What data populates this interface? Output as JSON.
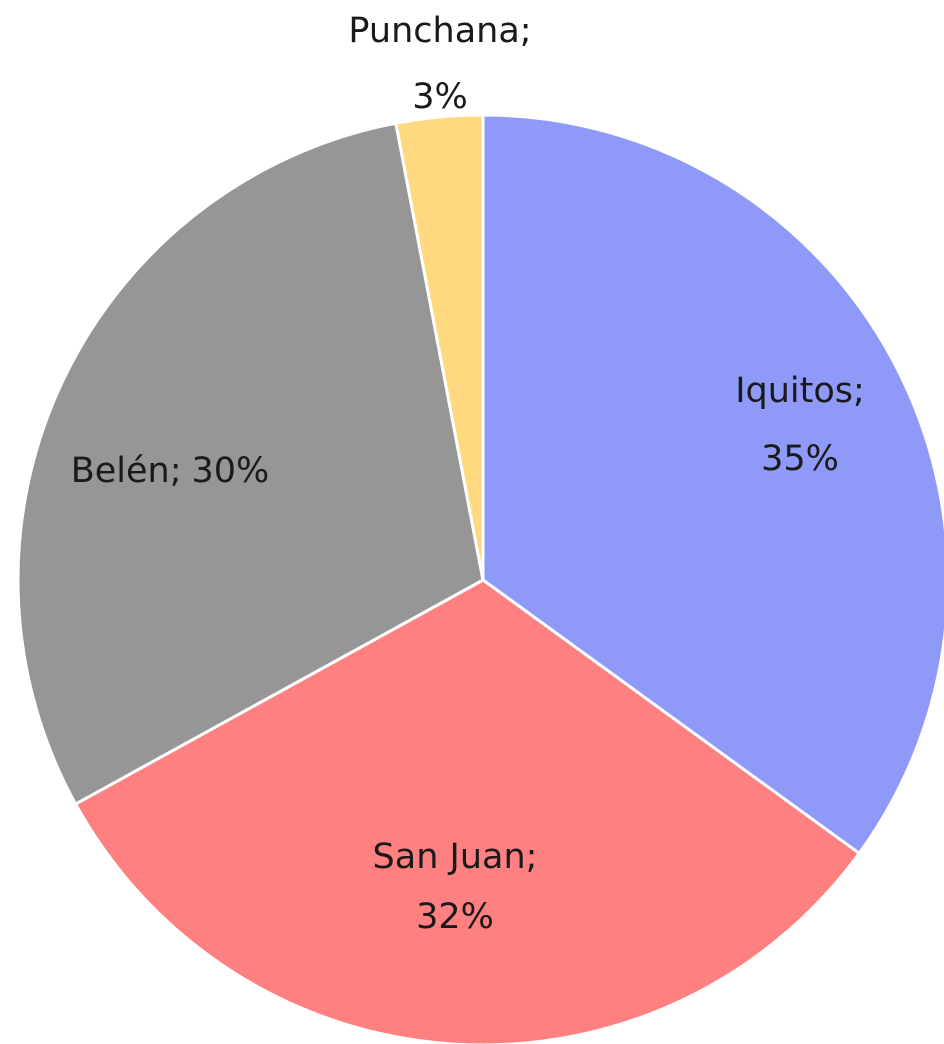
{
  "chart_data": {
    "type": "pie",
    "categories": [
      "Iquitos;",
      "San Juan;",
      "Belén;",
      "Punchana;"
    ],
    "values": [
      35,
      32,
      30,
      3
    ],
    "value_labels": [
      "35%",
      "32%",
      "30%",
      "3%"
    ],
    "colors": [
      "#8f9af8",
      "#ff8080",
      "#969696",
      "#ffd97f"
    ]
  }
}
